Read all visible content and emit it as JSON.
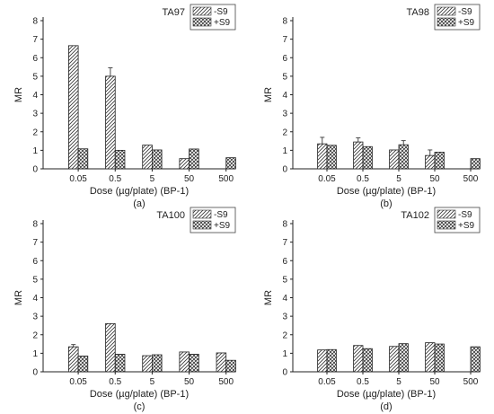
{
  "colors": {
    "axis": "#222222",
    "bar_stroke": "#222222",
    "background": "#ffffff"
  },
  "chart_data": [
    {
      "type": "bar",
      "title": "TA97",
      "panel_label": "(a)",
      "xlabel": "Dose (µg/plate) (BP-1)",
      "ylabel": "MR",
      "categories": [
        "0.05",
        "0.5",
        "5",
        "50",
        "500"
      ],
      "ylim": [
        0,
        8
      ],
      "yticks": [
        "0",
        "1",
        "2",
        "3",
        "4",
        "5",
        "6",
        "7",
        "8"
      ],
      "legend": {
        "position": "top-right",
        "entries": [
          "-S9",
          "+S9"
        ]
      },
      "series": [
        {
          "name": "-S9",
          "pattern": "diagonal-hatch",
          "values": [
            6.65,
            5.0,
            1.28,
            0.55,
            0.0
          ],
          "errors": [
            0,
            0.45,
            0,
            0,
            0
          ]
        },
        {
          "name": "+S9",
          "pattern": "crosshatch",
          "values": [
            1.08,
            1.0,
            1.02,
            1.07,
            0.6
          ],
          "errors": [
            0,
            0,
            0,
            0,
            0
          ]
        }
      ]
    },
    {
      "type": "bar",
      "title": "TA98",
      "panel_label": "(b)",
      "xlabel": "Dose (µg/plate) (BP-1)",
      "ylabel": "MR",
      "categories": [
        "0.05",
        "0.5",
        "5",
        "50",
        "500"
      ],
      "ylim": [
        0,
        8
      ],
      "yticks": [
        "0",
        "1",
        "2",
        "3",
        "4",
        "5",
        "6",
        "7",
        "8"
      ],
      "legend": {
        "position": "top-right",
        "entries": [
          "-S9",
          "+S9"
        ]
      },
      "series": [
        {
          "name": "-S9",
          "pattern": "diagonal-hatch",
          "values": [
            1.35,
            1.45,
            1.02,
            0.72,
            0.0
          ],
          "errors": [
            0.35,
            0.22,
            0,
            0.3,
            0
          ]
        },
        {
          "name": "+S9",
          "pattern": "crosshatch",
          "values": [
            1.27,
            1.2,
            1.3,
            0.9,
            0.55
          ],
          "errors": [
            0,
            0,
            0.22,
            0,
            0
          ]
        }
      ]
    },
    {
      "type": "bar",
      "title": "TA100",
      "panel_label": "(c)",
      "xlabel": "Dose (µg/plate) (BP-1)",
      "ylabel": "MR",
      "categories": [
        "0.05",
        "0.5",
        "5",
        "50",
        "500"
      ],
      "ylim": [
        0,
        8
      ],
      "yticks": [
        "0",
        "1",
        "2",
        "3",
        "4",
        "5",
        "6",
        "7",
        "8"
      ],
      "legend": {
        "position": "top-right",
        "entries": [
          "-S9",
          "+S9"
        ]
      },
      "series": [
        {
          "name": "-S9",
          "pattern": "diagonal-hatch",
          "values": [
            1.35,
            2.6,
            0.87,
            1.07,
            1.02
          ],
          "errors": [
            0.12,
            0,
            0,
            0,
            0
          ]
        },
        {
          "name": "+S9",
          "pattern": "crosshatch",
          "values": [
            0.85,
            0.95,
            0.92,
            0.95,
            0.62
          ],
          "errors": [
            0,
            0,
            0,
            0,
            0
          ]
        }
      ]
    },
    {
      "type": "bar",
      "title": "TA102",
      "panel_label": "(d)",
      "xlabel": "Dose (µg/plate) (BP-1)",
      "ylabel": "MR",
      "categories": [
        "0.05",
        "0.5",
        "5",
        "50",
        "500"
      ],
      "ylim": [
        0,
        8
      ],
      "yticks": [
        "0",
        "1",
        "2",
        "3",
        "4",
        "5",
        "6",
        "7",
        "8"
      ],
      "legend": {
        "position": "top-right",
        "entries": [
          "-S9",
          "+S9"
        ]
      },
      "series": [
        {
          "name": "-S9",
          "pattern": "diagonal-hatch",
          "values": [
            1.18,
            1.42,
            1.37,
            1.57,
            0.0
          ],
          "errors": [
            0,
            0,
            0,
            0,
            0
          ]
        },
        {
          "name": "+S9",
          "pattern": "crosshatch",
          "values": [
            1.2,
            1.25,
            1.52,
            1.5,
            1.35
          ],
          "errors": [
            0,
            0,
            0,
            0,
            0
          ]
        }
      ]
    }
  ]
}
